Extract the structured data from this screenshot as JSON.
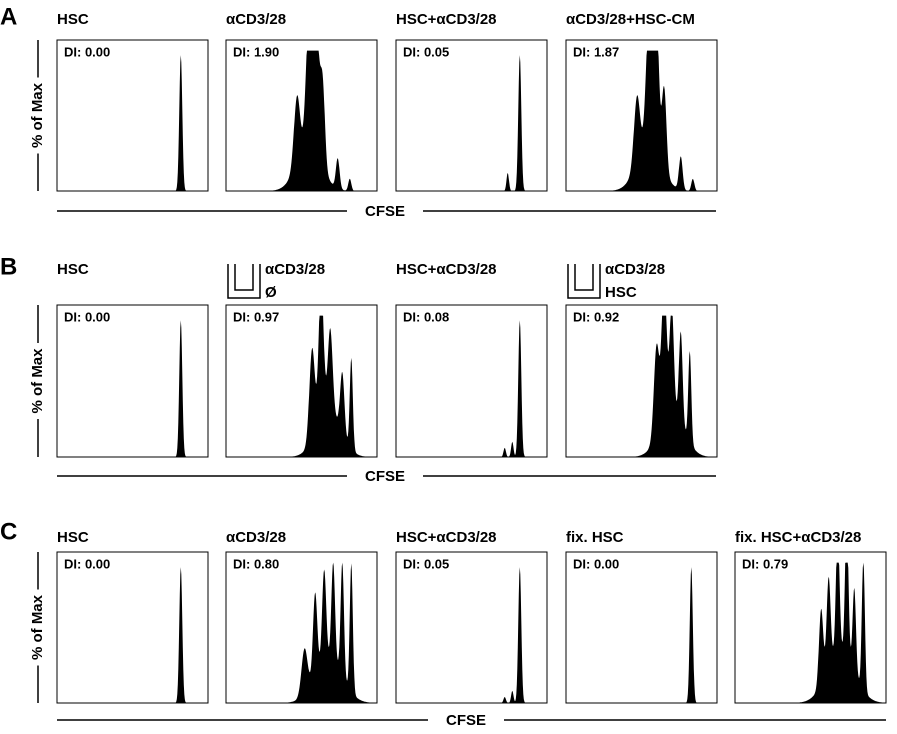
{
  "panels": [
    {
      "label": "A",
      "y_label": "% of Max",
      "x_label": "CFSE",
      "plots": [
        {
          "title": "HSC",
          "di": "DI: 0.00"
        },
        {
          "title": "αCD3/28",
          "di": "DI: 1.90"
        },
        {
          "title": "HSC+αCD3/28",
          "di": "DI: 0.05"
        },
        {
          "title": "αCD3/28+HSC-CM",
          "di": "DI: 1.87"
        }
      ]
    },
    {
      "label": "B",
      "y_label": "% of Max",
      "x_label": "CFSE",
      "plots": [
        {
          "title": "HSC",
          "di": "DI: 0.00"
        },
        {
          "title": "αCD3/28",
          "insert": "Ø",
          "di": "DI: 0.97"
        },
        {
          "title": "HSC+αCD3/28",
          "di": "DI: 0.08"
        },
        {
          "title": "αCD3/28",
          "insert": "HSC",
          "di": "DI: 0.92"
        }
      ]
    },
    {
      "label": "C",
      "y_label": "% of Max",
      "x_label": "CFSE",
      "plots": [
        {
          "title": "HSC",
          "di": "DI: 0.00"
        },
        {
          "title": "αCD3/28",
          "di": "DI: 0.80"
        },
        {
          "title": "HSC+αCD3/28",
          "di": "DI: 0.05"
        },
        {
          "title": "fix. HSC",
          "di": "DI: 0.00"
        },
        {
          "title": "fix. HSC+αCD3/28",
          "di": "DI: 0.79"
        }
      ]
    }
  ]
}
